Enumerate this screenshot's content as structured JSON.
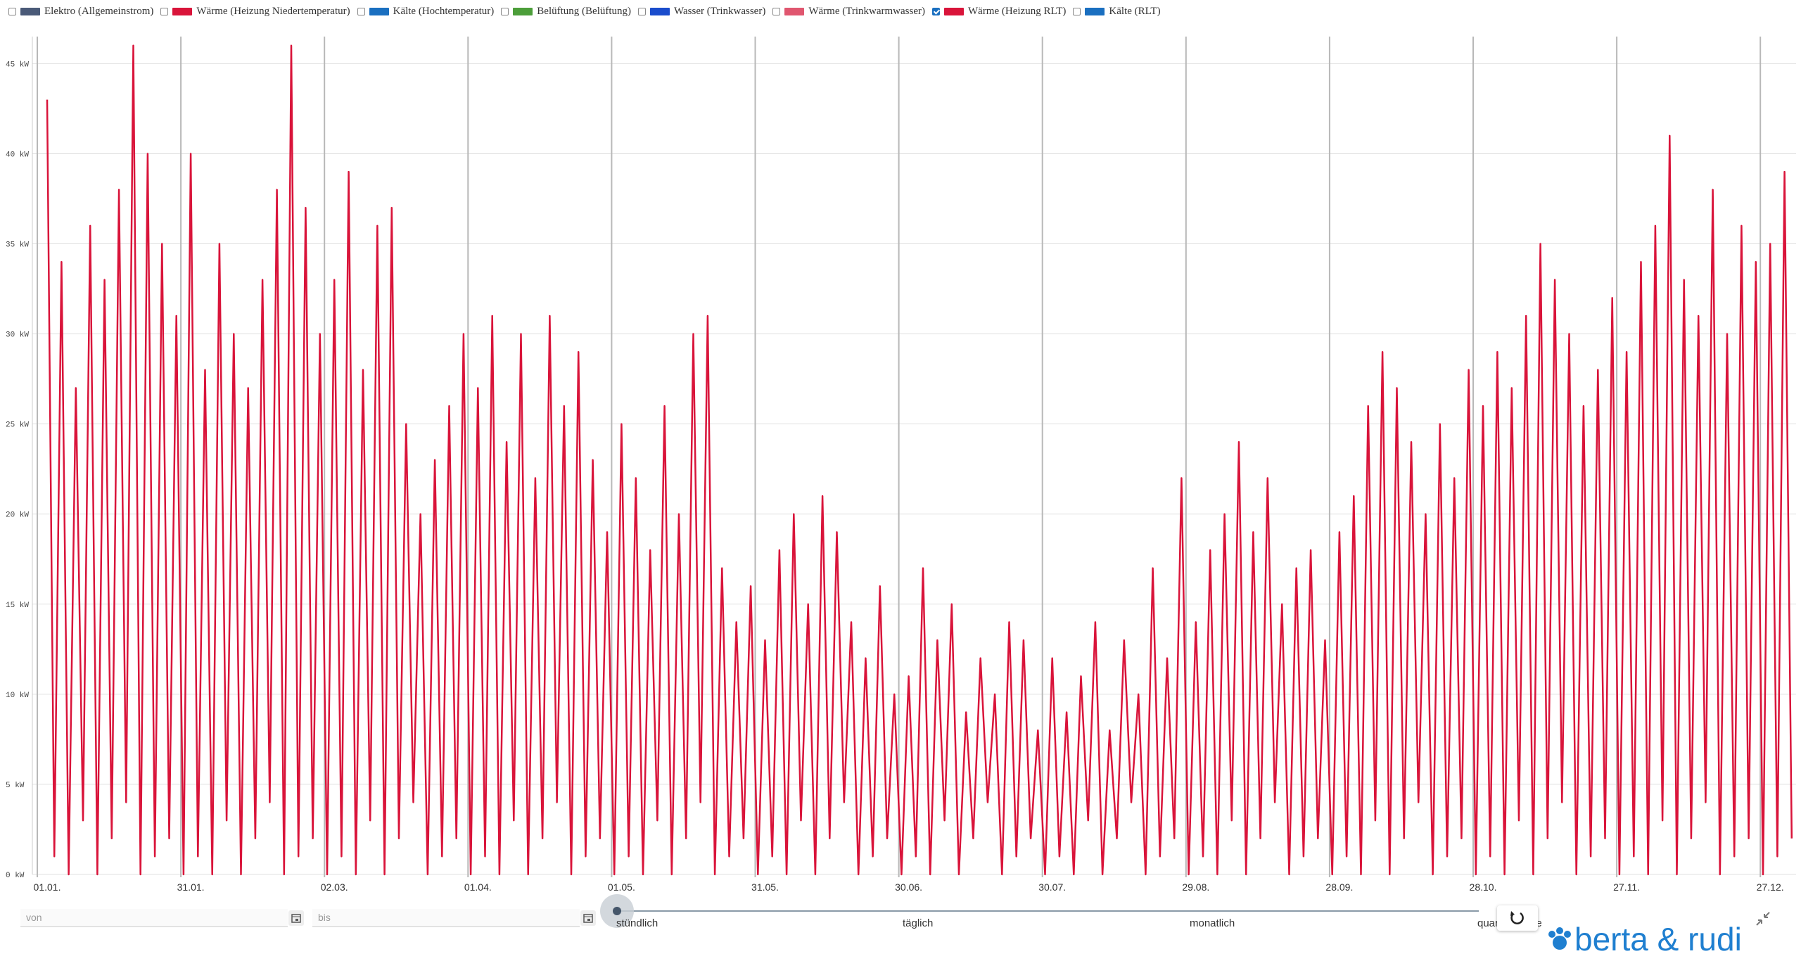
{
  "chart_data": {
    "type": "line",
    "series": [
      {
        "name": "Elektro (Allgemeinstrom)",
        "color": "#4a5a78",
        "checked": false
      },
      {
        "name": "Wärme (Heizung Niedertemperatur)",
        "color": "#d9143a",
        "checked": false
      },
      {
        "name": "Kälte (Hochtemperatur)",
        "color": "#1a6fc0",
        "checked": false
      },
      {
        "name": "Belüftung (Belüftung)",
        "color": "#4c9e3a",
        "checked": false
      },
      {
        "name": "Wasser (Trinkwasser)",
        "color": "#1a4ccc",
        "checked": false
      },
      {
        "name": "Wärme (Trinkwarmwasser)",
        "color": "#e0566f",
        "checked": false
      },
      {
        "name": "Wärme (Heizung RLT)",
        "color": "#d9143a",
        "checked": true,
        "values": [
          43,
          1,
          34,
          0,
          27,
          3,
          36,
          0,
          33,
          2,
          38,
          4,
          46,
          0,
          40,
          1,
          35,
          2,
          31,
          0,
          40,
          1,
          28,
          0,
          35,
          3,
          30,
          0,
          27,
          2,
          33,
          4,
          38,
          0,
          46,
          1,
          37,
          2,
          30,
          0,
          33,
          1,
          39,
          0,
          28,
          3,
          36,
          0,
          37,
          2,
          25,
          4,
          20,
          0,
          23,
          1,
          26,
          2,
          30,
          0,
          27,
          1,
          31,
          0,
          24,
          3,
          30,
          0,
          22,
          2,
          31,
          4,
          26,
          0,
          29,
          1,
          23,
          2,
          19,
          0,
          25,
          1,
          22,
          0,
          18,
          3,
          26,
          0,
          20,
          2,
          30,
          4,
          31,
          0,
          17,
          1,
          14,
          2,
          16,
          0,
          13,
          1,
          18,
          0,
          20,
          3,
          15,
          0,
          21,
          2,
          19,
          4,
          14,
          0,
          12,
          1,
          16,
          2,
          10,
          0,
          11,
          1,
          17,
          0,
          13,
          3,
          15,
          0,
          9,
          2,
          12,
          4,
          10,
          0,
          14,
          1,
          13,
          2,
          8,
          0,
          12,
          1,
          9,
          0,
          11,
          3,
          14,
          0,
          8,
          2,
          13,
          4,
          10,
          0,
          17,
          1,
          12,
          2,
          22,
          0,
          14,
          1,
          18,
          0,
          20,
          3,
          24,
          0,
          19,
          2,
          22,
          4,
          15,
          0,
          17,
          1,
          18,
          2,
          13,
          0,
          19,
          1,
          21,
          0,
          26,
          3,
          29,
          0,
          27,
          2,
          24,
          4,
          20,
          0,
          25,
          1,
          22,
          2,
          28,
          0,
          26,
          1,
          29,
          0,
          27,
          3,
          31,
          0,
          35,
          2,
          33,
          4,
          30,
          0,
          26,
          1,
          28,
          2,
          32,
          0,
          29,
          1,
          34,
          0,
          36,
          3,
          41,
          0,
          33,
          2,
          31,
          4,
          38,
          0,
          30,
          1,
          36,
          2,
          34,
          0,
          35,
          1,
          39,
          2
        ]
      },
      {
        "name": "Kälte (RLT)",
        "color": "#1a6fc0",
        "checked": false
      }
    ],
    "categories": [
      "01.01.",
      null,
      null,
      null,
      null,
      null,
      null,
      null,
      null,
      null,
      null,
      null,
      null,
      null,
      null,
      null,
      null,
      null,
      null,
      null,
      "31.01.",
      null,
      null,
      null,
      null,
      null,
      null,
      null,
      null,
      null,
      null,
      null,
      null,
      null,
      null,
      null,
      null,
      null,
      null,
      null,
      "02.03.",
      null,
      null,
      null,
      null,
      null,
      null,
      null,
      null,
      null,
      null,
      null,
      null,
      null,
      null,
      null,
      null,
      null,
      null,
      null,
      "01.04.",
      null,
      null,
      null,
      null,
      null,
      null,
      null,
      null,
      null,
      null,
      null,
      null,
      null,
      null,
      null,
      null,
      null,
      null,
      null,
      "01.05.",
      null,
      null,
      null,
      null,
      null,
      null,
      null,
      null,
      null,
      null,
      null,
      null,
      null,
      null,
      null,
      null,
      null,
      null,
      null,
      "31.05.",
      null,
      null,
      null,
      null,
      null,
      null,
      null,
      null,
      null,
      null,
      null,
      null,
      null,
      null,
      null,
      null,
      null,
      null,
      null,
      "30.06.",
      null,
      null,
      null,
      null,
      null,
      null,
      null,
      null,
      null,
      null,
      null,
      null,
      null,
      null,
      null,
      null,
      null,
      null,
      null,
      "30.07.",
      null,
      null,
      null,
      null,
      null,
      null,
      null,
      null,
      null,
      null,
      null,
      null,
      null,
      null,
      null,
      null,
      null,
      null,
      null,
      "29.08.",
      null,
      null,
      null,
      null,
      null,
      null,
      null,
      null,
      null,
      null,
      null,
      null,
      null,
      null,
      null,
      null,
      null,
      null,
      null,
      "28.09.",
      null,
      null,
      null,
      null,
      null,
      null,
      null,
      null,
      null,
      null,
      null,
      null,
      null,
      null,
      null,
      null,
      null,
      null,
      null,
      "28.10.",
      null,
      null,
      null,
      null,
      null,
      null,
      null,
      null,
      null,
      null,
      null,
      null,
      null,
      null,
      null,
      null,
      null,
      null,
      null,
      "27.11.",
      null,
      null,
      null,
      null,
      null,
      null,
      null,
      null,
      null,
      null,
      null,
      null,
      null,
      null,
      null,
      null,
      null,
      null,
      null,
      "27.12.",
      null,
      null,
      null
    ],
    "ylim": [
      0,
      46.5
    ],
    "yticks": [
      {
        "value": 0,
        "label": "0 kW"
      },
      {
        "value": 5,
        "label": "5 kW"
      },
      {
        "value": 10,
        "label": "10 kW"
      },
      {
        "value": 15,
        "label": "15 kW"
      },
      {
        "value": 20,
        "label": "20 kW"
      },
      {
        "value": 25,
        "label": "25 kW"
      },
      {
        "value": 30,
        "label": "30 kW"
      },
      {
        "value": 35,
        "label": "35 kW"
      },
      {
        "value": 40,
        "label": "40 kW"
      },
      {
        "value": 45,
        "label": "45 kW"
      }
    ],
    "grid": true
  },
  "ui": {
    "from_placeholder": "von",
    "to_placeholder": "bis",
    "resolutions": [
      "stündlich",
      "täglich",
      "monatlich",
      "quartalsweise"
    ],
    "logo": "berta & rudi"
  }
}
